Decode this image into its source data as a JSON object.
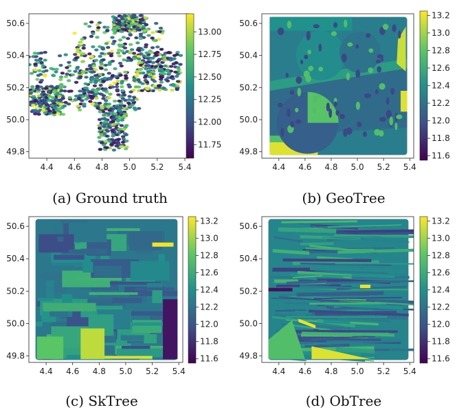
{
  "chart_data": [
    {
      "type": "heatmap",
      "panel_title": "(a) Ground truth",
      "render": "scatter",
      "xlim": [
        4.27,
        5.43
      ],
      "ylim": [
        49.76,
        50.66
      ],
      "xticks": [
        "4.4",
        "4.6",
        "4.8",
        "5.0",
        "5.2",
        "5.4"
      ],
      "yticks": [
        "49.8",
        "50.0",
        "50.2",
        "50.4",
        "50.6"
      ],
      "colorbar": {
        "min": 11.6,
        "max": 13.2,
        "ticks": [
          "11.75",
          "12.00",
          "12.25",
          "12.50",
          "12.75",
          "13.00"
        ]
      },
      "colormap": [
        "#440154",
        "#3b528b",
        "#21918c",
        "#5ec962",
        "#fde725"
      ]
    },
    {
      "type": "heatmap",
      "panel_title": "(b) GeoTree",
      "render": "geotree",
      "xlim": [
        4.27,
        5.43
      ],
      "ylim": [
        49.76,
        50.66
      ],
      "xticks": [
        "4.4",
        "4.6",
        "4.8",
        "5.0",
        "5.2",
        "5.4"
      ],
      "yticks": [
        "49.8",
        "50.0",
        "50.2",
        "50.4",
        "50.6"
      ],
      "colorbar": {
        "min": 11.55,
        "max": 13.25,
        "ticks": [
          "11.6",
          "11.8",
          "12.0",
          "12.2",
          "12.4",
          "12.6",
          "12.8",
          "13.0",
          "13.2"
        ]
      },
      "colormap": [
        "#440154",
        "#3b528b",
        "#21918c",
        "#5ec962",
        "#fde725"
      ]
    },
    {
      "type": "heatmap",
      "panel_title": "(c) SkTree",
      "render": "sktree",
      "xlim": [
        4.27,
        5.43
      ],
      "ylim": [
        49.76,
        50.66
      ],
      "xticks": [
        "4.4",
        "4.6",
        "4.8",
        "5.0",
        "5.2",
        "5.4"
      ],
      "yticks": [
        "49.8",
        "50.0",
        "50.2",
        "50.4",
        "50.6"
      ],
      "colorbar": {
        "min": 11.55,
        "max": 13.25,
        "ticks": [
          "11.6",
          "11.8",
          "12.0",
          "12.2",
          "12.4",
          "12.6",
          "12.8",
          "13.0",
          "13.2"
        ]
      },
      "colormap": [
        "#440154",
        "#3b528b",
        "#21918c",
        "#5ec962",
        "#fde725"
      ]
    },
    {
      "type": "heatmap",
      "panel_title": "(d) ObTree",
      "render": "obtree",
      "xlim": [
        4.27,
        5.43
      ],
      "ylim": [
        49.76,
        50.66
      ],
      "xticks": [
        "4.4",
        "4.6",
        "4.8",
        "5.0",
        "5.2",
        "5.4"
      ],
      "yticks": [
        "49.8",
        "50.0",
        "50.2",
        "50.4",
        "50.6"
      ],
      "colorbar": {
        "min": 11.55,
        "max": 13.25,
        "ticks": [
          "11.6",
          "11.8",
          "12.0",
          "12.2",
          "12.4",
          "12.6",
          "12.8",
          "13.0",
          "13.2"
        ]
      },
      "colormap": [
        "#440154",
        "#3b528b",
        "#21918c",
        "#5ec962",
        "#fde725"
      ]
    }
  ]
}
